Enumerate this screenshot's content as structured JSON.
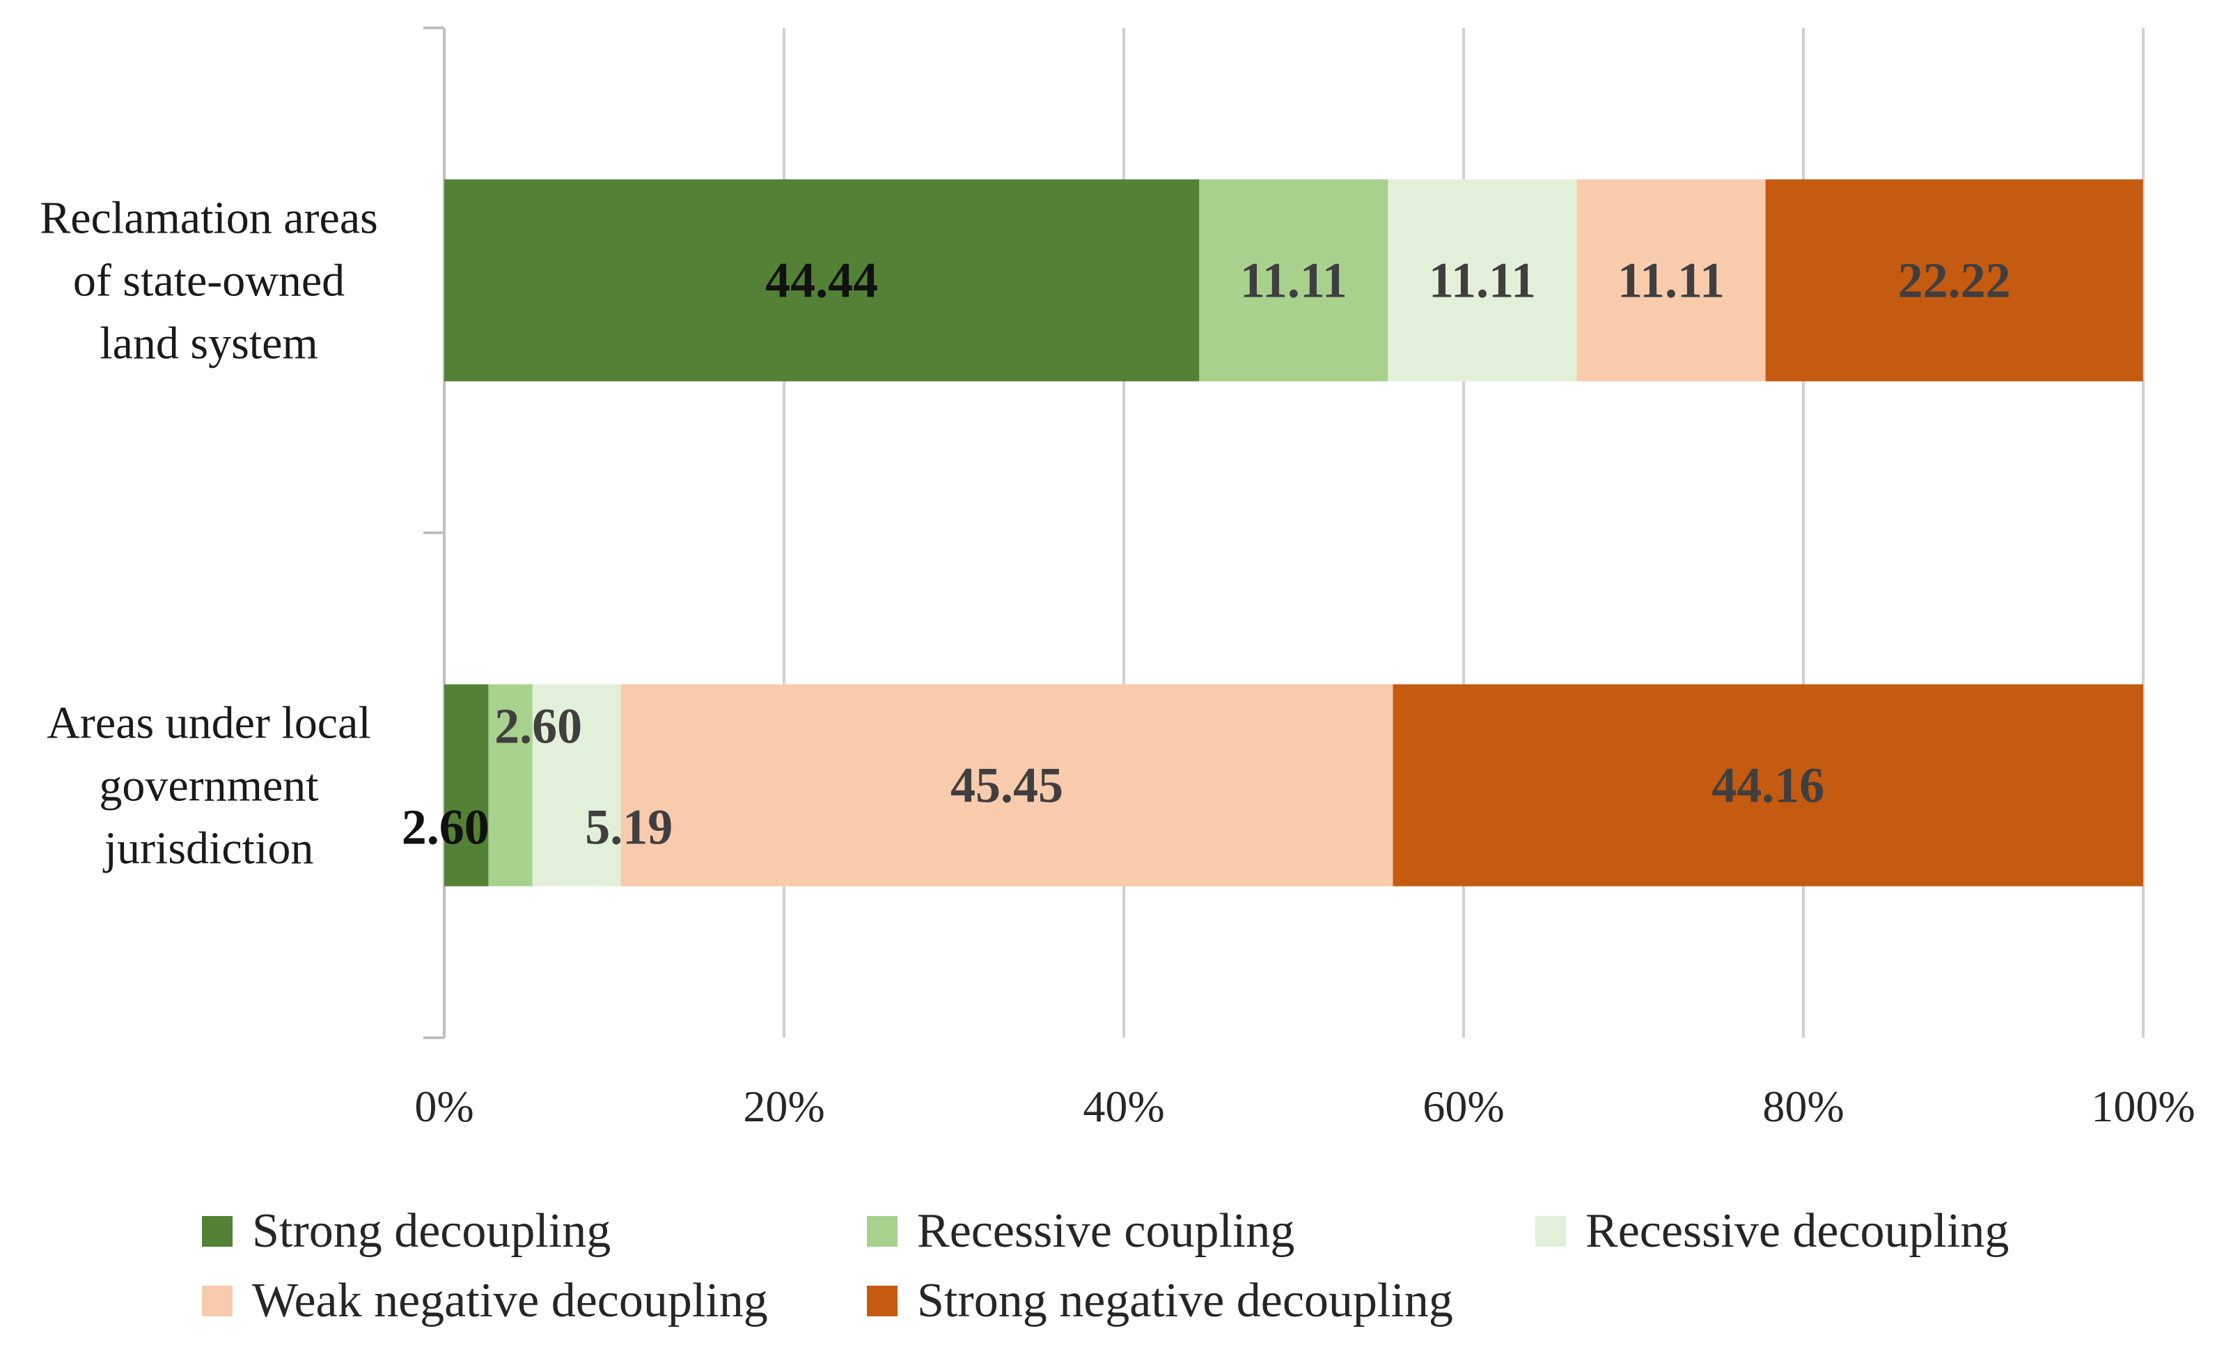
{
  "chart_data": {
    "type": "bar",
    "orientation": "horizontal",
    "stacked": "percent",
    "categories": [
      [
        "Reclamation areas",
        "of state-owned",
        "land system"
      ],
      [
        "Areas under local",
        "government",
        "jurisdiction"
      ]
    ],
    "series": [
      {
        "name": "Strong decoupling",
        "color": "#538135",
        "values": [
          44.44,
          2.6
        ],
        "labels": [
          "44.44",
          "2.60"
        ]
      },
      {
        "name": "Recessive coupling",
        "color": "#a9d18e",
        "values": [
          11.11,
          2.6
        ],
        "labels": [
          "11.11",
          "2.60"
        ]
      },
      {
        "name": "Recessive decoupling",
        "color": "#e2f0d9",
        "values": [
          11.11,
          5.19
        ],
        "labels": [
          "11.11",
          "5.19"
        ]
      },
      {
        "name": "Weak negative decoupling",
        "color": "#f8cbad",
        "values": [
          11.11,
          45.45
        ],
        "labels": [
          "11.11",
          "45.45"
        ]
      },
      {
        "name": "Strong negative decoupling",
        "color": "#c55a11",
        "values": [
          22.22,
          44.16
        ],
        "labels": [
          "22.22",
          "44.16"
        ]
      }
    ],
    "x_ticks": [
      "0%",
      "20%",
      "40%",
      "60%",
      "80%",
      "100%"
    ],
    "xlim": [
      0,
      100
    ],
    "grid": true,
    "legend_position": "bottom",
    "title": "",
    "xlabel": "",
    "ylabel": ""
  }
}
